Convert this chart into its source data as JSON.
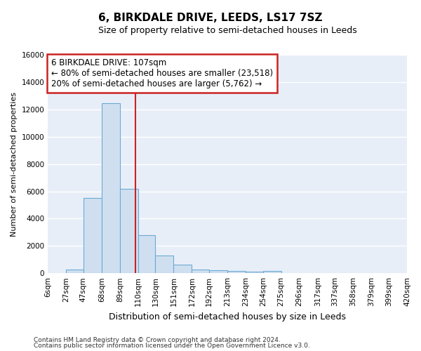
{
  "title": "6, BIRKDALE DRIVE, LEEDS, LS17 7SZ",
  "subtitle": "Size of property relative to semi-detached houses in Leeds",
  "xlabel": "Distribution of semi-detached houses by size in Leeds",
  "ylabel": "Number of semi-detached properties",
  "footer1": "Contains HM Land Registry data © Crown copyright and database right 2024.",
  "footer2": "Contains public sector information licensed under the Open Government Licence v3.0.",
  "bin_labels": [
    "6sqm",
    "27sqm",
    "47sqm",
    "68sqm",
    "89sqm",
    "110sqm",
    "130sqm",
    "151sqm",
    "172sqm",
    "192sqm",
    "213sqm",
    "234sqm",
    "254sqm",
    "275sqm",
    "296sqm",
    "317sqm",
    "337sqm",
    "358sqm",
    "379sqm",
    "399sqm",
    "420sqm"
  ],
  "bar_values": [
    0,
    280,
    5500,
    12450,
    6200,
    2800,
    1320,
    620,
    250,
    200,
    160,
    100,
    150,
    0,
    0,
    0,
    0,
    0,
    0,
    0
  ],
  "bar_color": "#d0dff0",
  "bar_edge_color": "#6aaad4",
  "property_line_x": 107,
  "property_line_color": "#cc2222",
  "annotation_line1": "6 BIRKDALE DRIVE: 107sqm",
  "annotation_line2": "← 80% of semi-detached houses are smaller (23,518)",
  "annotation_line3": "20% of semi-detached houses are larger (5,762) →",
  "annotation_box_color": "#cc2222",
  "ylim": [
    0,
    16000
  ],
  "yticks": [
    0,
    2000,
    4000,
    6000,
    8000,
    10000,
    12000,
    14000,
    16000
  ],
  "bin_edges": [
    6,
    27,
    47,
    68,
    89,
    110,
    130,
    151,
    172,
    192,
    213,
    234,
    254,
    275,
    296,
    317,
    337,
    358,
    379,
    399,
    420
  ],
  "background_color": "#e8eef8",
  "grid_color": "#ffffff",
  "title_fontsize": 11,
  "subtitle_fontsize": 9,
  "xlabel_fontsize": 9,
  "ylabel_fontsize": 8,
  "tick_fontsize": 7.5,
  "footer_fontsize": 6.5,
  "annotation_fontsize": 8.5
}
